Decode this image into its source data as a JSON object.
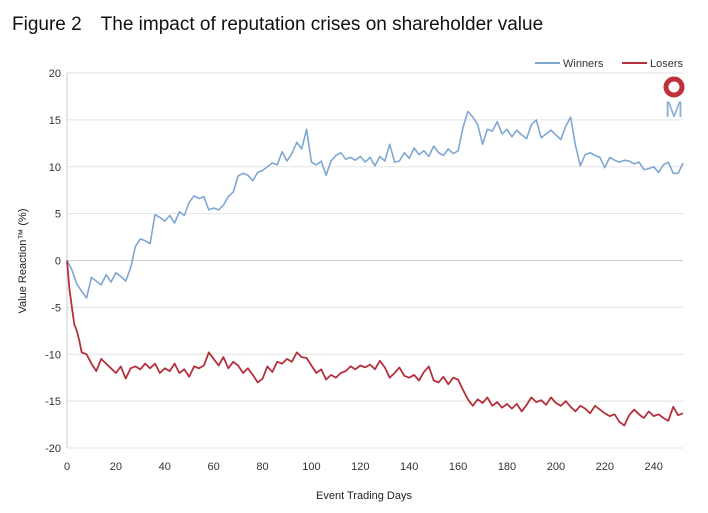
{
  "header": {
    "figure_label": "Figure 2",
    "title": "The impact of reputation crises on shareholder value"
  },
  "logo": {
    "letter": "M",
    "ring_color": "#c0303a",
    "letter_color": "#8fb0d6"
  },
  "chart_data": {
    "type": "line",
    "title": "The impact of reputation crises on shareholder value",
    "xlabel": "Event Trading Days",
    "ylabel": "Value Reaction™ (%)",
    "xlim": [
      0,
      252
    ],
    "ylim": [
      -20,
      20
    ],
    "xticks": [
      0,
      20,
      40,
      60,
      80,
      100,
      120,
      140,
      160,
      180,
      200,
      220,
      240
    ],
    "yticks": [
      20,
      15,
      10,
      5,
      0,
      -5,
      -10,
      -15,
      -20
    ],
    "grid": true,
    "legend": "top-right",
    "series": [
      {
        "name": "Winners",
        "color": "#7fa7d1",
        "points": [
          [
            0,
            0
          ],
          [
            2,
            -1
          ],
          [
            4,
            -2.5
          ],
          [
            6,
            -3.3
          ],
          [
            8,
            -4
          ],
          [
            10,
            -1.8
          ],
          [
            12,
            -2.2
          ],
          [
            14,
            -2.6
          ],
          [
            16,
            -1.5
          ],
          [
            18,
            -2.3
          ],
          [
            20,
            -1.3
          ],
          [
            22,
            -1.7
          ],
          [
            24,
            -2.2
          ],
          [
            26,
            -0.8
          ],
          [
            28,
            1.5
          ],
          [
            30,
            2.3
          ],
          [
            32,
            2.1
          ],
          [
            34,
            1.8
          ],
          [
            36,
            4.9
          ],
          [
            38,
            4.6
          ],
          [
            40,
            4.2
          ],
          [
            42,
            4.8
          ],
          [
            44,
            4
          ],
          [
            46,
            5.2
          ],
          [
            48,
            4.8
          ],
          [
            50,
            6.2
          ],
          [
            52,
            6.9
          ],
          [
            54,
            6.6
          ],
          [
            56,
            6.8
          ],
          [
            58,
            5.4
          ],
          [
            60,
            5.6
          ],
          [
            62,
            5.4
          ],
          [
            64,
            5.9
          ],
          [
            66,
            6.8
          ],
          [
            68,
            7.3
          ],
          [
            70,
            9
          ],
          [
            72,
            9.3
          ],
          [
            74,
            9.1
          ],
          [
            76,
            8.5
          ],
          [
            78,
            9.4
          ],
          [
            80,
            9.6
          ],
          [
            82,
            10
          ],
          [
            84,
            10.4
          ],
          [
            86,
            10.2
          ],
          [
            88,
            11.6
          ],
          [
            90,
            10.6
          ],
          [
            92,
            11.4
          ],
          [
            94,
            12.6
          ],
          [
            96,
            11.9
          ],
          [
            98,
            14
          ],
          [
            100,
            10.5
          ],
          [
            102,
            10.2
          ],
          [
            104,
            10.6
          ],
          [
            106,
            9.1
          ],
          [
            108,
            10.6
          ],
          [
            110,
            11.2
          ],
          [
            112,
            11.5
          ],
          [
            114,
            10.8
          ],
          [
            116,
            11
          ],
          [
            118,
            10.7
          ],
          [
            120,
            11.1
          ],
          [
            122,
            10.5
          ],
          [
            124,
            11
          ],
          [
            126,
            10.1
          ],
          [
            128,
            11.1
          ],
          [
            130,
            10.6
          ],
          [
            132,
            12.4
          ],
          [
            134,
            10.5
          ],
          [
            136,
            10.6
          ],
          [
            138,
            11.5
          ],
          [
            140,
            10.9
          ],
          [
            142,
            12
          ],
          [
            144,
            11.3
          ],
          [
            146,
            11.7
          ],
          [
            148,
            11.1
          ],
          [
            150,
            12.2
          ],
          [
            152,
            11.5
          ],
          [
            154,
            11.2
          ],
          [
            156,
            11.9
          ],
          [
            158,
            11.4
          ],
          [
            160,
            11.7
          ],
          [
            162,
            14.2
          ],
          [
            164,
            15.9
          ],
          [
            166,
            15.3
          ],
          [
            168,
            14.5
          ],
          [
            170,
            12.4
          ],
          [
            172,
            14
          ],
          [
            174,
            13.8
          ],
          [
            176,
            14.8
          ],
          [
            178,
            13.5
          ],
          [
            180,
            14
          ],
          [
            182,
            13.2
          ],
          [
            184,
            13.9
          ],
          [
            186,
            13.4
          ],
          [
            188,
            13
          ],
          [
            190,
            14.5
          ],
          [
            192,
            15
          ],
          [
            194,
            13.1
          ],
          [
            196,
            13.5
          ],
          [
            198,
            13.9
          ],
          [
            200,
            13.4
          ],
          [
            202,
            12.9
          ],
          [
            204,
            14.3
          ],
          [
            206,
            15.3
          ],
          [
            208,
            12.3
          ],
          [
            210,
            10.1
          ],
          [
            212,
            11.3
          ],
          [
            214,
            11.5
          ],
          [
            216,
            11.2
          ],
          [
            218,
            11
          ],
          [
            220,
            9.9
          ],
          [
            222,
            11
          ],
          [
            224,
            10.7
          ],
          [
            226,
            10.5
          ],
          [
            228,
            10.7
          ],
          [
            230,
            10.6
          ],
          [
            232,
            10.3
          ],
          [
            234,
            10.5
          ],
          [
            236,
            9.7
          ],
          [
            238,
            9.8
          ],
          [
            240,
            10
          ],
          [
            242,
            9.4
          ],
          [
            244,
            10.2
          ],
          [
            246,
            10.5
          ],
          [
            248,
            9.3
          ],
          [
            250,
            9.3
          ],
          [
            252,
            10.4
          ]
        ]
      },
      {
        "name": "Losers",
        "color": "#b5303d",
        "points": [
          [
            0,
            0
          ],
          [
            1,
            -3
          ],
          [
            2,
            -5
          ],
          [
            3,
            -6.8
          ],
          [
            4,
            -7.5
          ],
          [
            5,
            -8.5
          ],
          [
            6,
            -9.8
          ],
          [
            8,
            -10
          ],
          [
            10,
            -11
          ],
          [
            12,
            -11.8
          ],
          [
            14,
            -10.5
          ],
          [
            16,
            -11
          ],
          [
            18,
            -11.5
          ],
          [
            20,
            -12
          ],
          [
            22,
            -11.3
          ],
          [
            24,
            -12.6
          ],
          [
            26,
            -11.5
          ],
          [
            28,
            -11.3
          ],
          [
            30,
            -11.6
          ],
          [
            32,
            -11
          ],
          [
            34,
            -11.5
          ],
          [
            36,
            -11
          ],
          [
            38,
            -12
          ],
          [
            40,
            -11.5
          ],
          [
            42,
            -11.8
          ],
          [
            44,
            -11
          ],
          [
            46,
            -12
          ],
          [
            48,
            -11.6
          ],
          [
            50,
            -12.4
          ],
          [
            52,
            -11.3
          ],
          [
            54,
            -11.5
          ],
          [
            56,
            -11.2
          ],
          [
            58,
            -9.8
          ],
          [
            60,
            -10.5
          ],
          [
            62,
            -11.2
          ],
          [
            64,
            -10.3
          ],
          [
            66,
            -11.5
          ],
          [
            68,
            -10.8
          ],
          [
            70,
            -11.2
          ],
          [
            72,
            -12
          ],
          [
            74,
            -11.5
          ],
          [
            76,
            -12.2
          ],
          [
            78,
            -13
          ],
          [
            80,
            -12.6
          ],
          [
            82,
            -11.3
          ],
          [
            84,
            -11.9
          ],
          [
            86,
            -10.8
          ],
          [
            88,
            -11
          ],
          [
            90,
            -10.5
          ],
          [
            92,
            -10.8
          ],
          [
            94,
            -9.8
          ],
          [
            96,
            -10.3
          ],
          [
            98,
            -10.4
          ],
          [
            100,
            -11.2
          ],
          [
            102,
            -12
          ],
          [
            104,
            -11.6
          ],
          [
            106,
            -12.7
          ],
          [
            108,
            -12.2
          ],
          [
            110,
            -12.5
          ],
          [
            112,
            -12
          ],
          [
            114,
            -11.8
          ],
          [
            116,
            -11.3
          ],
          [
            118,
            -11.6
          ],
          [
            120,
            -11.2
          ],
          [
            122,
            -11.4
          ],
          [
            124,
            -11.1
          ],
          [
            126,
            -11.6
          ],
          [
            128,
            -10.7
          ],
          [
            130,
            -11.4
          ],
          [
            132,
            -12.5
          ],
          [
            134,
            -12
          ],
          [
            136,
            -11.4
          ],
          [
            138,
            -12.3
          ],
          [
            140,
            -12.5
          ],
          [
            142,
            -12.2
          ],
          [
            144,
            -12.8
          ],
          [
            146,
            -11.9
          ],
          [
            148,
            -11.3
          ],
          [
            150,
            -12.8
          ],
          [
            152,
            -13
          ],
          [
            154,
            -12.4
          ],
          [
            156,
            -13.2
          ],
          [
            158,
            -12.5
          ],
          [
            160,
            -12.7
          ],
          [
            162,
            -13.8
          ],
          [
            164,
            -14.8
          ],
          [
            166,
            -15.5
          ],
          [
            168,
            -14.8
          ],
          [
            170,
            -15.2
          ],
          [
            172,
            -14.6
          ],
          [
            174,
            -15.5
          ],
          [
            176,
            -15.1
          ],
          [
            178,
            -15.7
          ],
          [
            180,
            -15.3
          ],
          [
            182,
            -15.8
          ],
          [
            184,
            -15.3
          ],
          [
            186,
            -16.1
          ],
          [
            188,
            -15.4
          ],
          [
            190,
            -14.6
          ],
          [
            192,
            -15.1
          ],
          [
            194,
            -14.9
          ],
          [
            196,
            -15.4
          ],
          [
            198,
            -14.6
          ],
          [
            200,
            -15.2
          ],
          [
            202,
            -15.5
          ],
          [
            204,
            -15
          ],
          [
            206,
            -15.6
          ],
          [
            208,
            -16.1
          ],
          [
            210,
            -15.5
          ],
          [
            212,
            -15.8
          ],
          [
            214,
            -16.3
          ],
          [
            216,
            -15.5
          ],
          [
            218,
            -15.9
          ],
          [
            220,
            -16.3
          ],
          [
            222,
            -16.6
          ],
          [
            224,
            -16.4
          ],
          [
            226,
            -17.2
          ],
          [
            228,
            -17.6
          ],
          [
            230,
            -16.5
          ],
          [
            232,
            -15.9
          ],
          [
            234,
            -16.4
          ],
          [
            236,
            -16.8
          ],
          [
            238,
            -16.1
          ],
          [
            240,
            -16.6
          ],
          [
            242,
            -16.4
          ],
          [
            244,
            -16.8
          ],
          [
            246,
            -17.1
          ],
          [
            248,
            -15.6
          ],
          [
            250,
            -16.5
          ],
          [
            252,
            -16.3
          ]
        ]
      }
    ]
  }
}
